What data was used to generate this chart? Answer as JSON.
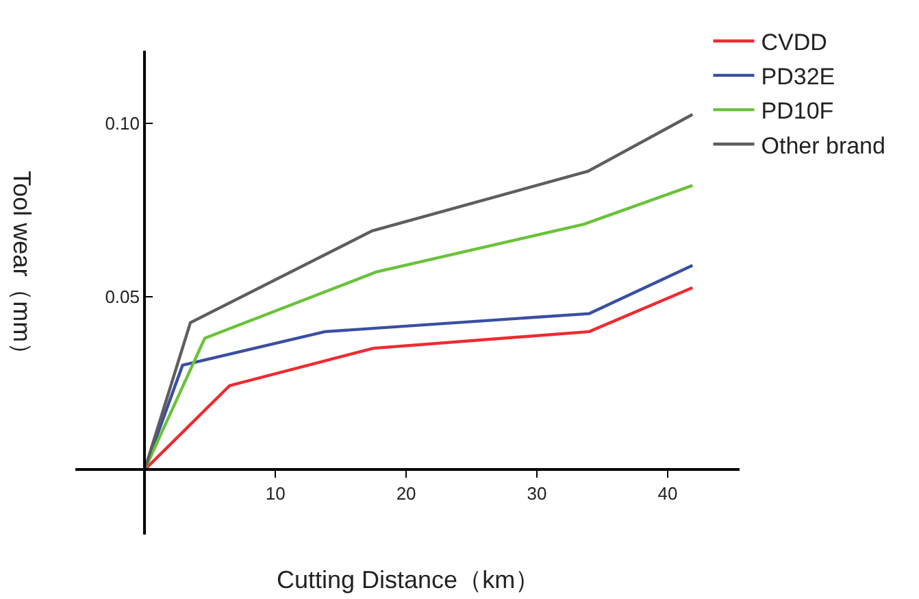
{
  "chart_data": {
    "type": "line",
    "xlabel": "Cutting Distance（km）",
    "ylabel": "Tool wear（mm）",
    "xlim": [
      -5.3,
      45.5
    ],
    "ylim": [
      -0.0187,
      0.121
    ],
    "xticks": [
      10,
      20,
      30,
      40
    ],
    "yticks": [
      {
        "value": 0.05,
        "label": "0.05"
      },
      {
        "value": 0.1,
        "label": "0.10"
      }
    ],
    "legend": "top right",
    "marker": "none",
    "line_style": "solid",
    "series": [
      {
        "name": "CVDD",
        "color": "#ee2b30",
        "x": [
          0,
          6.5,
          17.5,
          34,
          41.9
        ],
        "values": [
          0,
          0.0243,
          0.0351,
          0.0399,
          0.0526
        ]
      },
      {
        "name": "PD32E",
        "color": "#3a4fa3",
        "x": [
          0,
          2.9,
          13.8,
          34,
          41.9
        ],
        "values": [
          0,
          0.0302,
          0.0399,
          0.0451,
          0.059
        ]
      },
      {
        "name": "PD10F",
        "color": "#6ac23a",
        "x": [
          0,
          4.6,
          17.7,
          33.6,
          41.9
        ],
        "values": [
          0,
          0.038,
          0.0571,
          0.0709,
          0.0821
        ]
      },
      {
        "name": "Other brand",
        "color": "#5e5e5e",
        "x": [
          0,
          3.5,
          17.4,
          33.9,
          41.9
        ],
        "values": [
          0,
          0.0425,
          0.069,
          0.0862,
          0.1026
        ]
      }
    ]
  }
}
